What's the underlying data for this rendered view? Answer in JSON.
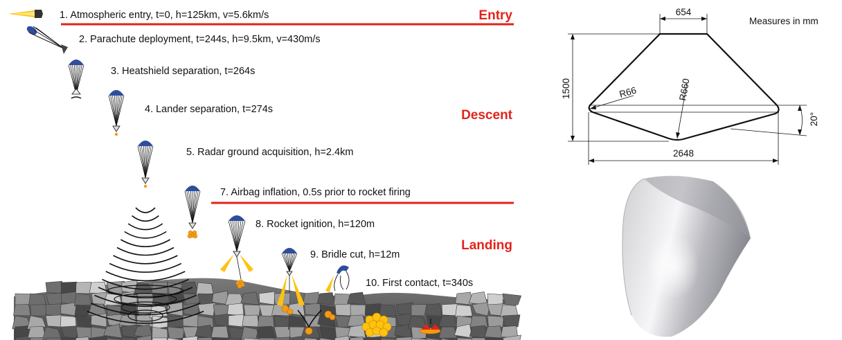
{
  "steps": [
    {
      "label": "1. Atmospheric entry, t=0, h=125km, v=5.6km/s"
    },
    {
      "label": "2. Parachute deployment, t=244s, h=9.5km, v=430m/s"
    },
    {
      "label": "3. Heatshield separation, t=264s"
    },
    {
      "label": "4. Lander separation, t=274s"
    },
    {
      "label": "5. Radar ground acquisition, h=2.4km"
    },
    {
      "label": "7. Airbag inflation, 0.5s prior to rocket firing"
    },
    {
      "label": "8. Rocket ignition, h=120m"
    },
    {
      "label": "9. Bridle cut, h=12m"
    },
    {
      "label": "10. First contact, t=340s"
    }
  ],
  "phases": {
    "entry": "Entry",
    "descent": "Descent",
    "landing": "Landing"
  },
  "drawing": {
    "units_note": "Measures in mm",
    "top_width": "654",
    "height": "1500",
    "corner_radius": "R66",
    "nose_radius": "R660",
    "base_width": "2648",
    "angle": "20°"
  },
  "colors": {
    "phase_text": "#e2231a",
    "phase_line": "#e2231a",
    "canopy": "#2e4d9c",
    "airbag": "#f39c12",
    "flame": "#ffc20e"
  }
}
